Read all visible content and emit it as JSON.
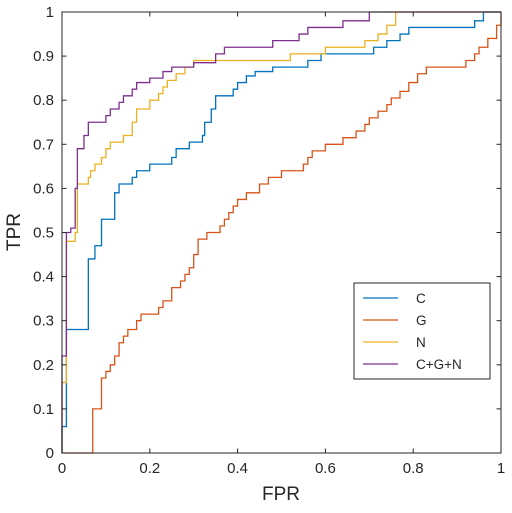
{
  "chart_data": {
    "type": "line",
    "title": "",
    "xlabel": "FPR",
    "ylabel": "TPR",
    "xlim": [
      0,
      1
    ],
    "ylim": [
      0,
      1
    ],
    "xticks": [
      "0",
      "0.2",
      "0.4",
      "0.6",
      "0.8",
      "1"
    ],
    "yticks": [
      "0",
      "0.1",
      "0.2",
      "0.3",
      "0.4",
      "0.5",
      "0.6",
      "0.7",
      "0.8",
      "0.9",
      "1"
    ],
    "grid": false,
    "legend_position": "lower-right",
    "series": [
      {
        "name": "C",
        "color": "#0072BD",
        "points": [
          [
            0,
            0
          ],
          [
            0,
            0.06
          ],
          [
            0.01,
            0.06
          ],
          [
            0.01,
            0.16
          ],
          [
            0.01,
            0.28
          ],
          [
            0.06,
            0.28
          ],
          [
            0.06,
            0.38
          ],
          [
            0.06,
            0.44
          ],
          [
            0.075,
            0.44
          ],
          [
            0.075,
            0.47
          ],
          [
            0.09,
            0.47
          ],
          [
            0.09,
            0.53
          ],
          [
            0.12,
            0.53
          ],
          [
            0.12,
            0.59
          ],
          [
            0.13,
            0.59
          ],
          [
            0.13,
            0.61
          ],
          [
            0.16,
            0.61
          ],
          [
            0.16,
            0.625
          ],
          [
            0.17,
            0.625
          ],
          [
            0.17,
            0.64
          ],
          [
            0.2,
            0.64
          ],
          [
            0.2,
            0.655
          ],
          [
            0.25,
            0.655
          ],
          [
            0.25,
            0.67
          ],
          [
            0.26,
            0.67
          ],
          [
            0.26,
            0.69
          ],
          [
            0.29,
            0.69
          ],
          [
            0.29,
            0.705
          ],
          [
            0.32,
            0.705
          ],
          [
            0.32,
            0.72
          ],
          [
            0.325,
            0.72
          ],
          [
            0.325,
            0.75
          ],
          [
            0.34,
            0.75
          ],
          [
            0.34,
            0.78
          ],
          [
            0.35,
            0.78
          ],
          [
            0.35,
            0.81
          ],
          [
            0.39,
            0.81
          ],
          [
            0.39,
            0.825
          ],
          [
            0.4,
            0.825
          ],
          [
            0.4,
            0.84
          ],
          [
            0.42,
            0.84
          ],
          [
            0.42,
            0.855
          ],
          [
            0.44,
            0.855
          ],
          [
            0.44,
            0.865
          ],
          [
            0.48,
            0.865
          ],
          [
            0.48,
            0.875
          ],
          [
            0.56,
            0.875
          ],
          [
            0.56,
            0.89
          ],
          [
            0.59,
            0.89
          ],
          [
            0.59,
            0.905
          ],
          [
            0.71,
            0.905
          ],
          [
            0.71,
            0.92
          ],
          [
            0.74,
            0.92
          ],
          [
            0.74,
            0.935
          ],
          [
            0.77,
            0.935
          ],
          [
            0.77,
            0.95
          ],
          [
            0.79,
            0.95
          ],
          [
            0.79,
            0.965
          ],
          [
            0.94,
            0.965
          ],
          [
            0.94,
            0.98
          ],
          [
            0.96,
            0.98
          ],
          [
            0.96,
            1
          ],
          [
            1,
            1
          ]
        ]
      },
      {
        "name": "G",
        "color": "#D95319",
        "points": [
          [
            0,
            0
          ],
          [
            0.07,
            0
          ],
          [
            0.07,
            0.1
          ],
          [
            0.09,
            0.1
          ],
          [
            0.09,
            0.17
          ],
          [
            0.1,
            0.17
          ],
          [
            0.1,
            0.185
          ],
          [
            0.11,
            0.185
          ],
          [
            0.11,
            0.2
          ],
          [
            0.12,
            0.2
          ],
          [
            0.12,
            0.22
          ],
          [
            0.13,
            0.22
          ],
          [
            0.13,
            0.25
          ],
          [
            0.14,
            0.25
          ],
          [
            0.14,
            0.265
          ],
          [
            0.15,
            0.265
          ],
          [
            0.15,
            0.28
          ],
          [
            0.17,
            0.28
          ],
          [
            0.17,
            0.3
          ],
          [
            0.18,
            0.3
          ],
          [
            0.18,
            0.315
          ],
          [
            0.22,
            0.315
          ],
          [
            0.22,
            0.33
          ],
          [
            0.23,
            0.33
          ],
          [
            0.23,
            0.345
          ],
          [
            0.25,
            0.345
          ],
          [
            0.25,
            0.375
          ],
          [
            0.27,
            0.375
          ],
          [
            0.27,
            0.39
          ],
          [
            0.28,
            0.39
          ],
          [
            0.28,
            0.405
          ],
          [
            0.29,
            0.405
          ],
          [
            0.29,
            0.42
          ],
          [
            0.3,
            0.42
          ],
          [
            0.3,
            0.45
          ],
          [
            0.31,
            0.45
          ],
          [
            0.31,
            0.485
          ],
          [
            0.33,
            0.485
          ],
          [
            0.33,
            0.5
          ],
          [
            0.36,
            0.5
          ],
          [
            0.36,
            0.515
          ],
          [
            0.37,
            0.515
          ],
          [
            0.37,
            0.53
          ],
          [
            0.38,
            0.53
          ],
          [
            0.38,
            0.545
          ],
          [
            0.39,
            0.545
          ],
          [
            0.39,
            0.56
          ],
          [
            0.4,
            0.56
          ],
          [
            0.4,
            0.575
          ],
          [
            0.42,
            0.575
          ],
          [
            0.42,
            0.59
          ],
          [
            0.45,
            0.59
          ],
          [
            0.45,
            0.61
          ],
          [
            0.47,
            0.61
          ],
          [
            0.47,
            0.625
          ],
          [
            0.5,
            0.625
          ],
          [
            0.5,
            0.64
          ],
          [
            0.55,
            0.64
          ],
          [
            0.55,
            0.655
          ],
          [
            0.56,
            0.655
          ],
          [
            0.56,
            0.67
          ],
          [
            0.57,
            0.67
          ],
          [
            0.57,
            0.685
          ],
          [
            0.6,
            0.685
          ],
          [
            0.6,
            0.7
          ],
          [
            0.64,
            0.7
          ],
          [
            0.64,
            0.715
          ],
          [
            0.67,
            0.715
          ],
          [
            0.67,
            0.73
          ],
          [
            0.69,
            0.73
          ],
          [
            0.69,
            0.745
          ],
          [
            0.7,
            0.745
          ],
          [
            0.7,
            0.76
          ],
          [
            0.72,
            0.76
          ],
          [
            0.72,
            0.775
          ],
          [
            0.74,
            0.775
          ],
          [
            0.74,
            0.79
          ],
          [
            0.75,
            0.79
          ],
          [
            0.75,
            0.805
          ],
          [
            0.77,
            0.805
          ],
          [
            0.77,
            0.82
          ],
          [
            0.79,
            0.82
          ],
          [
            0.79,
            0.84
          ],
          [
            0.81,
            0.84
          ],
          [
            0.81,
            0.86
          ],
          [
            0.83,
            0.86
          ],
          [
            0.83,
            0.875
          ],
          [
            0.92,
            0.875
          ],
          [
            0.92,
            0.89
          ],
          [
            0.94,
            0.89
          ],
          [
            0.94,
            0.905
          ],
          [
            0.95,
            0.905
          ],
          [
            0.95,
            0.92
          ],
          [
            0.97,
            0.92
          ],
          [
            0.97,
            0.94
          ],
          [
            0.99,
            0.94
          ],
          [
            0.99,
            0.97
          ],
          [
            1,
            0.97
          ],
          [
            1,
            1
          ]
        ]
      },
      {
        "name": "N",
        "color": "#EDB120",
        "points": [
          [
            0,
            0
          ],
          [
            0,
            0.16
          ],
          [
            0.01,
            0.16
          ],
          [
            0.01,
            0.48
          ],
          [
            0.03,
            0.48
          ],
          [
            0.03,
            0.5
          ],
          [
            0.035,
            0.5
          ],
          [
            0.035,
            0.61
          ],
          [
            0.06,
            0.61
          ],
          [
            0.06,
            0.625
          ],
          [
            0.065,
            0.625
          ],
          [
            0.065,
            0.64
          ],
          [
            0.075,
            0.64
          ],
          [
            0.075,
            0.655
          ],
          [
            0.09,
            0.655
          ],
          [
            0.09,
            0.67
          ],
          [
            0.1,
            0.67
          ],
          [
            0.1,
            0.69
          ],
          [
            0.11,
            0.69
          ],
          [
            0.11,
            0.705
          ],
          [
            0.14,
            0.705
          ],
          [
            0.14,
            0.72
          ],
          [
            0.16,
            0.72
          ],
          [
            0.16,
            0.75
          ],
          [
            0.17,
            0.75
          ],
          [
            0.17,
            0.78
          ],
          [
            0.2,
            0.78
          ],
          [
            0.2,
            0.8
          ],
          [
            0.22,
            0.8
          ],
          [
            0.22,
            0.815
          ],
          [
            0.23,
            0.815
          ],
          [
            0.23,
            0.83
          ],
          [
            0.24,
            0.83
          ],
          [
            0.24,
            0.845
          ],
          [
            0.26,
            0.845
          ],
          [
            0.26,
            0.86
          ],
          [
            0.28,
            0.86
          ],
          [
            0.28,
            0.875
          ],
          [
            0.3,
            0.875
          ],
          [
            0.3,
            0.89
          ],
          [
            0.52,
            0.89
          ],
          [
            0.52,
            0.905
          ],
          [
            0.6,
            0.905
          ],
          [
            0.6,
            0.92
          ],
          [
            0.69,
            0.92
          ],
          [
            0.69,
            0.935
          ],
          [
            0.72,
            0.935
          ],
          [
            0.72,
            0.95
          ],
          [
            0.74,
            0.95
          ],
          [
            0.74,
            0.97
          ],
          [
            0.76,
            0.97
          ],
          [
            0.76,
            1
          ],
          [
            1,
            1
          ]
        ]
      },
      {
        "name": "C+G+N",
        "color": "#7E2F8E",
        "points": [
          [
            0,
            0
          ],
          [
            0,
            0.22
          ],
          [
            0.01,
            0.22
          ],
          [
            0.01,
            0.5
          ],
          [
            0.02,
            0.5
          ],
          [
            0.02,
            0.51
          ],
          [
            0.03,
            0.51
          ],
          [
            0.03,
            0.6
          ],
          [
            0.035,
            0.6
          ],
          [
            0.035,
            0.69
          ],
          [
            0.05,
            0.69
          ],
          [
            0.05,
            0.72
          ],
          [
            0.06,
            0.72
          ],
          [
            0.06,
            0.75
          ],
          [
            0.1,
            0.75
          ],
          [
            0.1,
            0.765
          ],
          [
            0.11,
            0.765
          ],
          [
            0.11,
            0.78
          ],
          [
            0.13,
            0.78
          ],
          [
            0.13,
            0.795
          ],
          [
            0.14,
            0.795
          ],
          [
            0.14,
            0.81
          ],
          [
            0.16,
            0.81
          ],
          [
            0.16,
            0.825
          ],
          [
            0.17,
            0.825
          ],
          [
            0.17,
            0.84
          ],
          [
            0.2,
            0.84
          ],
          [
            0.2,
            0.85
          ],
          [
            0.23,
            0.85
          ],
          [
            0.23,
            0.865
          ],
          [
            0.25,
            0.865
          ],
          [
            0.25,
            0.875
          ],
          [
            0.3,
            0.875
          ],
          [
            0.3,
            0.885
          ],
          [
            0.35,
            0.885
          ],
          [
            0.35,
            0.905
          ],
          [
            0.37,
            0.905
          ],
          [
            0.37,
            0.92
          ],
          [
            0.48,
            0.92
          ],
          [
            0.48,
            0.935
          ],
          [
            0.54,
            0.935
          ],
          [
            0.54,
            0.95
          ],
          [
            0.56,
            0.95
          ],
          [
            0.56,
            0.965
          ],
          [
            0.64,
            0.965
          ],
          [
            0.64,
            0.98
          ],
          [
            0.7,
            0.98
          ],
          [
            0.7,
            1
          ],
          [
            1,
            1
          ]
        ]
      }
    ]
  }
}
